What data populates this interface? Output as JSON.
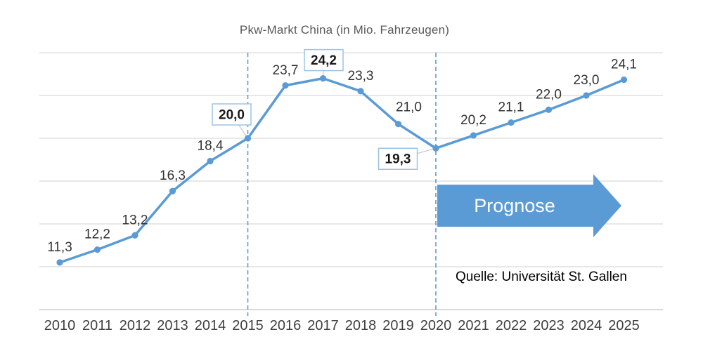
{
  "chart_data": {
    "type": "line",
    "title": "Pkw-Markt China (in Mio. Fahrzeugen)",
    "categories": [
      "2010",
      "2011",
      "2012",
      "2013",
      "2014",
      "2015",
      "2016",
      "2017",
      "2018",
      "2019",
      "2020",
      "2021",
      "2022",
      "2023",
      "2024",
      "2025"
    ],
    "values": [
      11.3,
      12.2,
      13.2,
      16.3,
      18.4,
      20.0,
      23.7,
      24.2,
      23.3,
      21.0,
      19.3,
      20.2,
      21.1,
      22.0,
      23.0,
      24.1
    ],
    "value_labels": [
      "11,3",
      "12,2",
      "13,2",
      "16,3",
      "18,4",
      "20,0",
      "23,7",
      "24,2",
      "23,3",
      "21,0",
      "19,3",
      "20,2",
      "21,1",
      "22,0",
      "23,0",
      "24,1"
    ],
    "boxed_indices": [
      5,
      7,
      10
    ],
    "dashed_vlines": [
      "2015",
      "2020"
    ],
    "ylim": [
      8,
      26
    ],
    "grid": true,
    "gridline_count": 7,
    "legend": "none",
    "xlabel": "",
    "ylabel": "",
    "label_offsets": {
      "5": [
        -23,
        -34
      ],
      "7": [
        1,
        -26
      ],
      "9": [
        15,
        -18
      ],
      "10": [
        -54,
        15
      ]
    }
  },
  "prognose": {
    "label": "Prognose"
  },
  "source": "Quelle: Universität St. Gallen",
  "colors": {
    "line": "#5B9BD5",
    "marker": "#5B9BD5",
    "grid": "#D9D9D9",
    "axis": "#BFBFBF",
    "dashed": "#5B9BD5",
    "leader": "#BFBFBF",
    "value_label": "#333333",
    "boxed_text": "#1a1a1a",
    "box_border": "#9DC3E6",
    "box_fill": "#FFFFFF",
    "title": "#595959",
    "xlabel": "#404040",
    "arrow": "#5B9BD5",
    "arrow_text": "#FFFFFF"
  }
}
